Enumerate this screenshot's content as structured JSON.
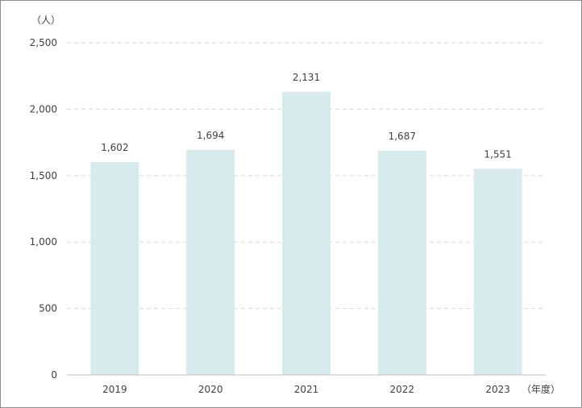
{
  "chart_data": {
    "type": "bar",
    "y_unit_label": "（人）",
    "x_unit_label": "（年度）",
    "categories": [
      "2019",
      "2020",
      "2021",
      "2022",
      "2023"
    ],
    "values": [
      1602,
      1694,
      2131,
      1687,
      1551
    ],
    "value_labels": [
      "1,602",
      "1,694",
      "2,131",
      "1,687",
      "1,551"
    ],
    "ylim": [
      0,
      2500
    ],
    "yticks": [
      0,
      500,
      1000,
      1500,
      2000,
      2500
    ],
    "ytick_labels": [
      "0",
      "500",
      "1,000",
      "1,500",
      "2,000",
      "2,500"
    ],
    "grid": true,
    "bar_color": "#d7eaec",
    "grid_color": "#d9d9d9",
    "axis_color": "#bfbfbf"
  }
}
